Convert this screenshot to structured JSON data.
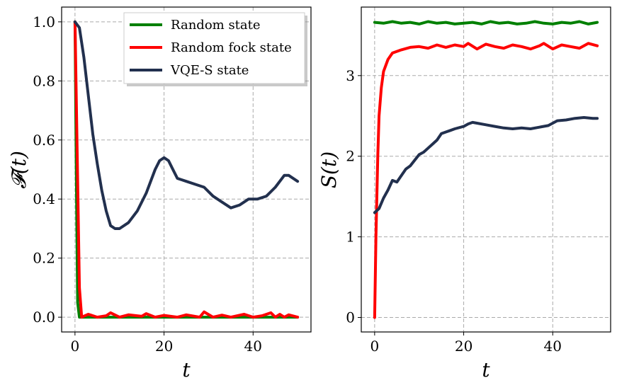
{
  "chart_data": [
    {
      "type": "line",
      "xlabel": "t",
      "ylabel": "𝓕(t)",
      "xlim": [
        -3,
        53
      ],
      "ylim": [
        -0.05,
        1.05
      ],
      "xticks": [
        "0",
        "20",
        "40"
      ],
      "xtick_values": [
        0,
        20,
        40
      ],
      "yticks": [
        "0.0",
        "0.2",
        "0.4",
        "0.6",
        "0.8",
        "1.0"
      ],
      "ytick_values": [
        0.0,
        0.2,
        0.4,
        0.6,
        0.8,
        1.0
      ],
      "grid": true,
      "legend_position": "top-right",
      "series": [
        {
          "name": "Random state",
          "color": "#008000",
          "x": [
            0,
            0.3,
            0.6,
            1,
            2,
            5,
            10,
            20,
            30,
            40,
            50
          ],
          "y": [
            1.0,
            0.5,
            0.05,
            0.0,
            0.0,
            0.0,
            0.0,
            0.0,
            0.0,
            0.0,
            0.0
          ]
        },
        {
          "name": "Random fock state",
          "color": "#ff0000",
          "x": [
            0,
            0.5,
            1,
            1.5,
            3,
            5,
            7,
            8,
            10,
            12,
            15,
            16,
            18,
            20,
            23,
            25,
            28,
            29,
            31,
            33,
            35,
            38,
            40,
            42,
            44,
            45,
            46,
            47,
            48,
            50
          ],
          "y": [
            1.0,
            0.55,
            0.1,
            0.0,
            0.01,
            0.0,
            0.005,
            0.015,
            0.0,
            0.008,
            0.003,
            0.012,
            0.0,
            0.006,
            0.0,
            0.008,
            0.0,
            0.018,
            0.0,
            0.007,
            0.0,
            0.01,
            0.0,
            0.005,
            0.015,
            0.0,
            0.01,
            0.0,
            0.008,
            0.0
          ]
        },
        {
          "name": "VQE-S state",
          "color": "#22304e",
          "x": [
            0,
            1,
            2,
            3,
            4,
            5,
            6,
            7,
            8,
            9,
            10,
            12,
            14,
            16,
            18,
            19,
            20,
            21,
            22,
            23,
            25,
            27,
            29,
            31,
            33,
            35,
            37,
            39,
            41,
            43,
            45,
            47,
            48,
            50
          ],
          "y": [
            1.0,
            0.98,
            0.88,
            0.75,
            0.62,
            0.52,
            0.43,
            0.36,
            0.31,
            0.3,
            0.3,
            0.32,
            0.36,
            0.42,
            0.5,
            0.53,
            0.54,
            0.53,
            0.5,
            0.47,
            0.46,
            0.45,
            0.44,
            0.41,
            0.39,
            0.37,
            0.38,
            0.4,
            0.4,
            0.41,
            0.44,
            0.48,
            0.48,
            0.46
          ]
        }
      ]
    },
    {
      "type": "line",
      "xlabel": "t",
      "ylabel": "S(t)",
      "xlim": [
        -3,
        53
      ],
      "ylim": [
        -0.18,
        3.85
      ],
      "xticks": [
        "0",
        "20",
        "40"
      ],
      "xtick_values": [
        0,
        20,
        40
      ],
      "yticks": [
        "0",
        "1",
        "2",
        "3"
      ],
      "ytick_values": [
        0,
        1,
        2,
        3
      ],
      "grid": true,
      "series": [
        {
          "name": "Random state",
          "color": "#008000",
          "x": [
            0,
            2,
            4,
            6,
            8,
            10,
            12,
            14,
            16,
            18,
            20,
            22,
            24,
            26,
            28,
            30,
            32,
            34,
            36,
            38,
            40,
            42,
            44,
            46,
            48,
            50
          ],
          "y": [
            3.66,
            3.65,
            3.67,
            3.65,
            3.66,
            3.64,
            3.67,
            3.65,
            3.66,
            3.64,
            3.65,
            3.66,
            3.64,
            3.67,
            3.65,
            3.66,
            3.64,
            3.65,
            3.67,
            3.65,
            3.64,
            3.66,
            3.65,
            3.67,
            3.64,
            3.66
          ]
        },
        {
          "name": "Random fock state",
          "color": "#ff0000",
          "x": [
            0,
            0.3,
            0.7,
            1,
            1.5,
            2,
            3,
            4,
            5,
            6,
            8,
            10,
            12,
            14,
            16,
            18,
            20,
            21,
            23,
            25,
            27,
            29,
            31,
            33,
            35,
            37,
            38,
            40,
            42,
            44,
            46,
            48,
            50
          ],
          "y": [
            0.0,
            1.0,
            2.0,
            2.5,
            2.85,
            3.05,
            3.2,
            3.28,
            3.3,
            3.32,
            3.35,
            3.36,
            3.34,
            3.38,
            3.35,
            3.38,
            3.36,
            3.4,
            3.33,
            3.39,
            3.36,
            3.34,
            3.38,
            3.36,
            3.33,
            3.37,
            3.4,
            3.33,
            3.38,
            3.36,
            3.34,
            3.4,
            3.37
          ]
        },
        {
          "name": "VQE-S state",
          "color": "#22304e",
          "x": [
            0,
            1,
            2,
            3,
            4,
            5,
            6,
            7,
            8,
            9,
            10,
            11,
            12,
            13,
            14,
            15,
            16,
            17,
            18,
            20,
            21,
            22,
            23,
            25,
            27,
            29,
            31,
            33,
            35,
            37,
            39,
            41,
            43,
            45,
            47,
            49,
            50
          ],
          "y": [
            1.3,
            1.35,
            1.48,
            1.58,
            1.7,
            1.68,
            1.76,
            1.84,
            1.88,
            1.95,
            2.02,
            2.05,
            2.1,
            2.15,
            2.2,
            2.28,
            2.3,
            2.32,
            2.34,
            2.37,
            2.4,
            2.42,
            2.41,
            2.39,
            2.37,
            2.35,
            2.34,
            2.35,
            2.34,
            2.36,
            2.38,
            2.44,
            2.45,
            2.47,
            2.48,
            2.47,
            2.47
          ]
        }
      ]
    }
  ]
}
